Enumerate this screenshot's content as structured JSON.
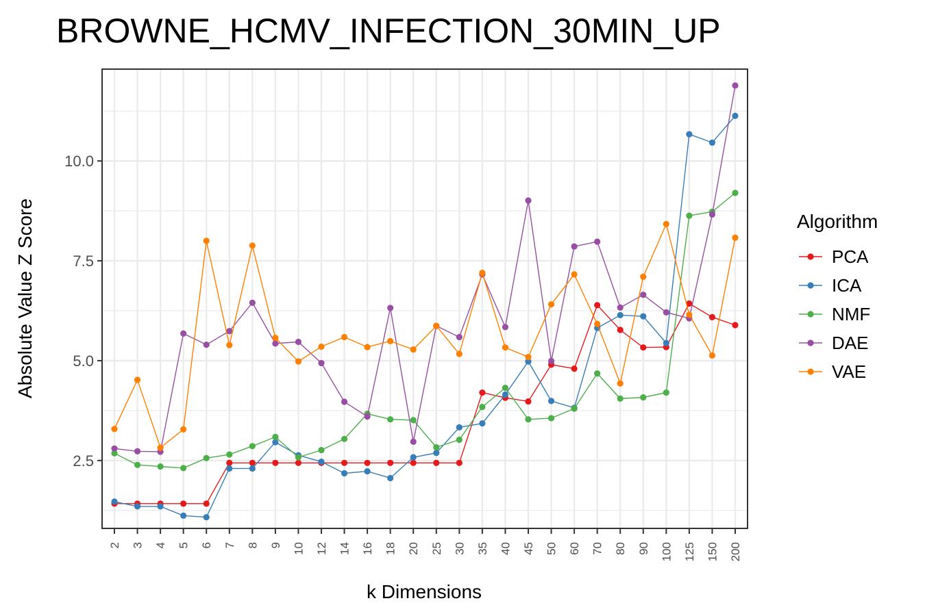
{
  "chart_data": {
    "type": "line",
    "title": "BROWNE_HCMV_INFECTION_30MIN_UP",
    "xlabel": "k Dimensions",
    "ylabel": "Absolute Value Z Score",
    "categories": [
      "2",
      "3",
      "4",
      "5",
      "6",
      "7",
      "8",
      "9",
      "10",
      "12",
      "14",
      "16",
      "18",
      "20",
      "25",
      "30",
      "35",
      "40",
      "45",
      "50",
      "60",
      "70",
      "80",
      "90",
      "100",
      "125",
      "150",
      "200"
    ],
    "ylim": [
      0.8,
      12.3
    ],
    "yticks": [
      2.5,
      5.0,
      7.5,
      10.0
    ],
    "ytick_labels": [
      "2.5",
      "5.0",
      "7.5",
      "10.0"
    ],
    "grid": true,
    "legend": {
      "title": "Algorithm",
      "position": "right"
    },
    "series": [
      {
        "name": "PCA",
        "color": "#e41a1c",
        "values": [
          1.42,
          1.42,
          1.42,
          1.42,
          1.42,
          2.44,
          2.44,
          2.44,
          2.44,
          2.44,
          2.44,
          2.44,
          2.44,
          2.44,
          2.44,
          2.44,
          4.2,
          4.07,
          3.98,
          4.9,
          4.8,
          6.39,
          5.77,
          5.33,
          5.34,
          6.43,
          6.09,
          5.89
        ]
      },
      {
        "name": "ICA",
        "color": "#377eb8",
        "values": [
          1.47,
          1.35,
          1.35,
          1.12,
          1.08,
          2.3,
          2.3,
          2.96,
          2.63,
          2.47,
          2.18,
          2.23,
          2.06,
          2.58,
          2.69,
          3.33,
          3.43,
          4.15,
          4.98,
          3.99,
          3.82,
          5.82,
          6.14,
          6.11,
          5.44,
          10.67,
          10.46,
          11.13
        ]
      },
      {
        "name": "NMF",
        "color": "#4daf4a",
        "values": [
          2.68,
          2.39,
          2.35,
          2.31,
          2.56,
          2.65,
          2.86,
          3.09,
          2.58,
          2.76,
          3.04,
          3.67,
          3.53,
          3.51,
          2.83,
          3.02,
          3.84,
          4.32,
          3.53,
          3.56,
          3.8,
          4.68,
          4.05,
          4.08,
          4.2,
          8.63,
          8.73,
          9.2
        ]
      },
      {
        "name": "DAE",
        "color": "#984ea3",
        "values": [
          2.8,
          2.73,
          2.72,
          5.68,
          5.4,
          5.74,
          6.45,
          5.43,
          5.47,
          4.94,
          3.97,
          3.6,
          6.32,
          2.97,
          5.87,
          5.59,
          7.16,
          5.84,
          9.01,
          4.99,
          7.86,
          7.98,
          6.33,
          6.65,
          6.21,
          6.06,
          8.66,
          11.89
        ]
      },
      {
        "name": "VAE",
        "color": "#ff7f00",
        "values": [
          3.29,
          4.52,
          2.82,
          3.28,
          8.0,
          5.39,
          7.88,
          5.57,
          4.98,
          5.35,
          5.59,
          5.34,
          5.49,
          5.28,
          5.87,
          5.17,
          7.2,
          5.33,
          5.09,
          6.41,
          7.16,
          5.92,
          4.43,
          7.1,
          8.42,
          6.15,
          5.13,
          8.08
        ]
      }
    ]
  }
}
